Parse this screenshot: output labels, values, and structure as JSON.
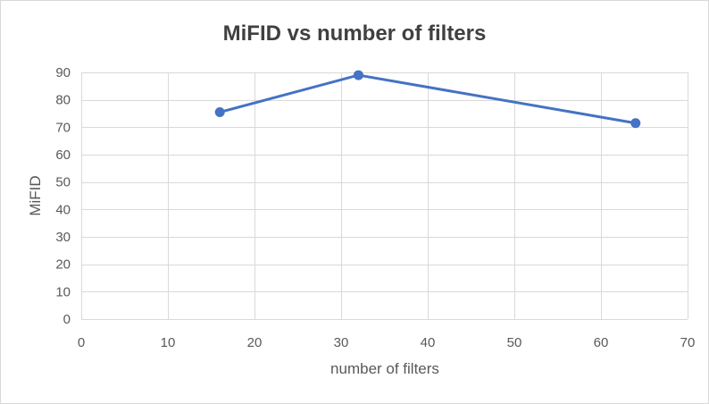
{
  "chart_data": {
    "type": "scatter",
    "title": "MiFID vs number of filters",
    "xlabel": "number of filters",
    "ylabel": "MiFID",
    "xlim": [
      0,
      70
    ],
    "ylim": [
      0,
      90
    ],
    "x_ticks": [
      0,
      10,
      20,
      30,
      40,
      50,
      60,
      70
    ],
    "y_ticks": [
      0,
      10,
      20,
      30,
      40,
      50,
      60,
      70,
      80,
      90
    ],
    "grid": true,
    "legend": "none",
    "series": [
      {
        "color": "#4472c4",
        "connected": true,
        "x": [
          16,
          32,
          64
        ],
        "y": [
          75.5,
          89,
          71.5
        ]
      }
    ]
  }
}
